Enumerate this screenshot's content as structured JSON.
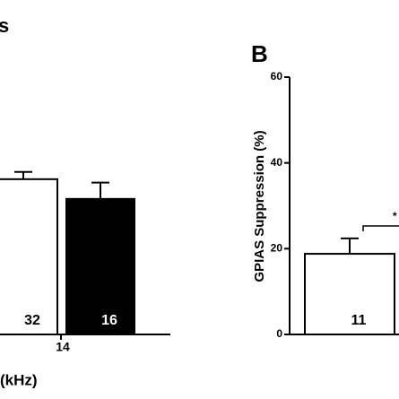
{
  "chart_data": [
    {
      "type": "bar",
      "title": "s",
      "xlabel": "(kHz)",
      "categories": [
        "14"
      ],
      "ylim": [
        0,
        60
      ],
      "series": [
        {
          "color": "#ffffff",
          "values": [
            36.2
          ],
          "errors": [
            1.7
          ],
          "n_labels": [
            "32"
          ]
        },
        {
          "color": "#000000",
          "values": [
            31.6
          ],
          "errors": [
            3.8
          ],
          "n_labels": [
            "16"
          ]
        }
      ]
    },
    {
      "type": "bar",
      "title": "B",
      "ylabel": "GPIAS Suppression (%)",
      "ylim": [
        0,
        60
      ],
      "yticks": [
        0,
        20,
        40,
        60
      ],
      "series": [
        {
          "color": "#ffffff",
          "values": [
            18.8
          ],
          "errors": [
            3.6
          ],
          "n_labels": [
            "11"
          ]
        }
      ],
      "annotation": "*"
    }
  ]
}
